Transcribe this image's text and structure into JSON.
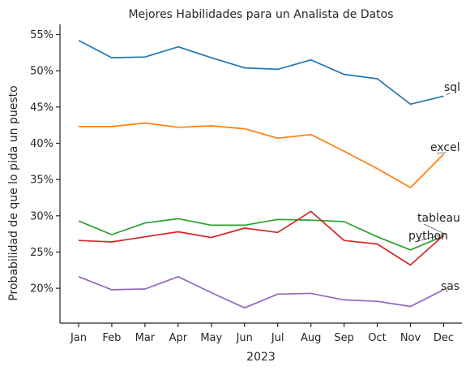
{
  "chart_data": {
    "type": "line",
    "title": "Mejores Habilidades para un Analista de Datos",
    "xlabel": "2023",
    "ylabel": "Probabilidad de que lo pida un puesto",
    "categories": [
      "Jan",
      "Feb",
      "Mar",
      "Apr",
      "May",
      "Jun",
      "Jul",
      "Aug",
      "Sep",
      "Oct",
      "Nov",
      "Dec"
    ],
    "yticks": [
      20,
      25,
      30,
      35,
      40,
      45,
      50,
      55
    ],
    "ytick_labels": [
      "20%",
      "25%",
      "30%",
      "35%",
      "40%",
      "45%",
      "50%",
      "55%"
    ],
    "ylim": [
      15.2,
      56.4
    ],
    "grid": false,
    "legend": "none",
    "series": [
      {
        "name": "sql",
        "color": "#1f77b4",
        "values": [
          54.2,
          51.8,
          51.9,
          53.3,
          51.8,
          50.4,
          50.2,
          51.5,
          49.5,
          48.9,
          45.4,
          46.5
        ]
      },
      {
        "name": "excel",
        "color": "#ff7f0e",
        "values": [
          42.3,
          42.3,
          42.8,
          42.2,
          42.4,
          42.0,
          40.7,
          41.2,
          38.9,
          36.5,
          33.9,
          38.5
        ]
      },
      {
        "name": "tableau",
        "color": "#2ca02c",
        "values": [
          29.3,
          27.4,
          29.0,
          29.6,
          28.7,
          28.7,
          29.5,
          29.4,
          29.2,
          27.1,
          25.3,
          27.2
        ]
      },
      {
        "name": "python",
        "color": "#d62728",
        "values": [
          26.6,
          26.4,
          27.1,
          27.8,
          27.0,
          28.3,
          27.7,
          30.6,
          26.6,
          26.1,
          23.2,
          27.3
        ]
      },
      {
        "name": "sas",
        "color": "#9467bd",
        "values": [
          21.6,
          19.8,
          19.9,
          21.6,
          19.4,
          17.3,
          19.2,
          19.3,
          18.4,
          18.2,
          17.5,
          19.8
        ]
      }
    ]
  }
}
